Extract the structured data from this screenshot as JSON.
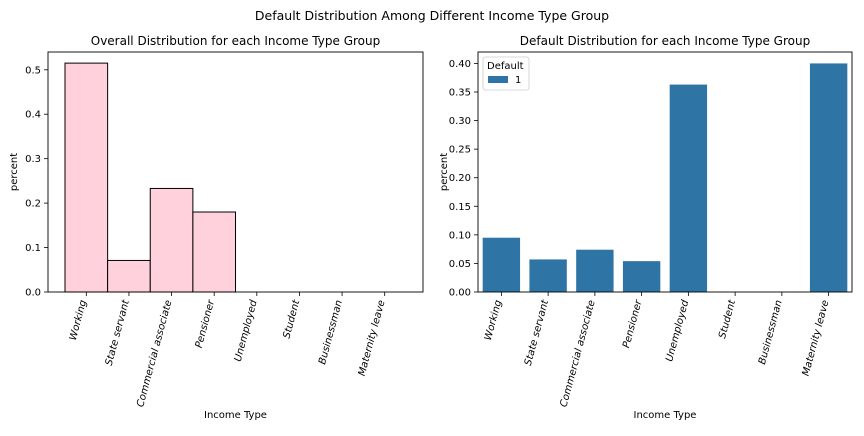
{
  "figure": {
    "suptitle": "Default Distribution Among Different Income Type Group"
  },
  "chart_data": [
    {
      "type": "bar",
      "title": "Overall Distribution for each Income Type Group",
      "xlabel": "Income Type",
      "ylabel": "percent",
      "categories": [
        "Working",
        "State servant",
        "Commercial associate",
        "Pensioner",
        "Unemployed",
        "Student",
        "Businessman",
        "Maternity leave"
      ],
      "values": [
        0.515,
        0.071,
        0.233,
        0.18,
        0.0,
        0.0,
        0.0,
        0.0
      ],
      "ylim": [
        0,
        0.54
      ],
      "yticks": [
        "0.0",
        "0.1",
        "0.2",
        "0.3",
        "0.4",
        "0.5"
      ],
      "ytick_values": [
        0,
        0.1,
        0.2,
        0.3,
        0.4,
        0.5
      ],
      "bar_color": "#ffd1dc",
      "edge_color": "#000000",
      "grid": false
    },
    {
      "type": "bar",
      "title": "Default Distribution for each Income Type Group",
      "xlabel": "Income Type",
      "ylabel": "percent",
      "categories": [
        "Working",
        "State servant",
        "Commercial associate",
        "Pensioner",
        "Unemployed",
        "Student",
        "Businessman",
        "Maternity leave"
      ],
      "series": [
        {
          "name": "1",
          "values": [
            0.095,
            0.057,
            0.074,
            0.054,
            0.363,
            0.0,
            0.0,
            0.4
          ]
        }
      ],
      "legend": {
        "title": "Default",
        "placement": "top-left"
      },
      "ylim": [
        0,
        0.42
      ],
      "yticks": [
        "0.00",
        "0.05",
        "0.10",
        "0.15",
        "0.20",
        "0.25",
        "0.30",
        "0.35",
        "0.40"
      ],
      "ytick_values": [
        0,
        0.05,
        0.1,
        0.15,
        0.2,
        0.25,
        0.3,
        0.35,
        0.4
      ],
      "bar_color": "#2e75a6",
      "grid": false
    }
  ]
}
